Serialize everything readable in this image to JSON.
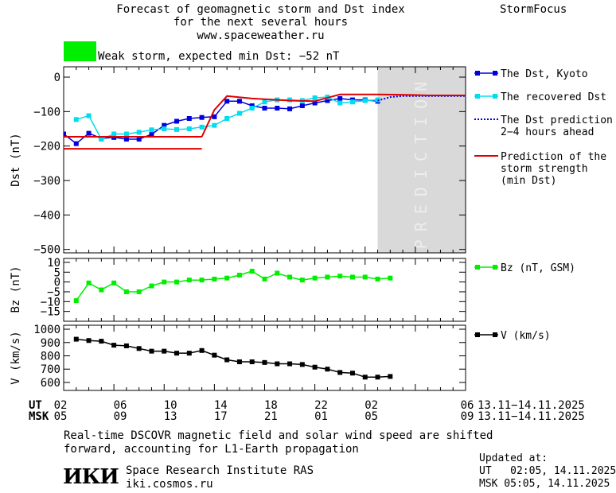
{
  "header": {
    "title_line1": "Forecast of geomagnetic storm and Dst index",
    "title_line2": "for the next several hours",
    "website": "www.spaceweather.ru",
    "brand": "StormFocus",
    "storm_status": "Weak storm, expected min Dst: −52 nT",
    "storm_color": "#00ee00"
  },
  "footer": {
    "note_line1": "Real-time DSCOVR magnetic field and solar wind speed are shifted",
    "note_line2": "forward, accounting for L1-Earth propagation",
    "institute": "Space Research Institute RAS",
    "institute_site": "iki.cosmos.ru",
    "logo_text": "ИКИ",
    "updated_label": "Updated at:",
    "updated_ut": "UT   02:05, 14.11.2025",
    "updated_msk": "MSK 05:05, 14.11.2025"
  },
  "time_axis": {
    "ut_label": "UT",
    "msk_label": "MSK",
    "ut_ticks": [
      "02",
      "06",
      "10",
      "14",
      "18",
      "22",
      "02",
      "06"
    ],
    "msk_ticks": [
      "05",
      "09",
      "13",
      "17",
      "21",
      "01",
      "05",
      "09"
    ],
    "ut_range": "13.11−14.11.2025",
    "msk_range": "13.11−14.11.2025"
  },
  "chart_data": [
    {
      "type": "line",
      "ylabel": "Dst (nT)",
      "ylim": [
        -510,
        30
      ],
      "xlim": [
        0,
        32
      ],
      "yticks": [
        0,
        -100,
        -200,
        -300,
        -400,
        -500
      ],
      "ytick_labels": [
        "0",
        "−100",
        "−200",
        "−300",
        "−400",
        "−500"
      ],
      "prediction_start": 25,
      "prediction_label": "PREDICTION",
      "series": [
        {
          "name": "The Dst, Kyoto",
          "color": "#0000dd",
          "style": "line-square",
          "x": [
            0,
            1,
            2,
            3,
            4,
            5,
            6,
            7,
            8,
            9,
            10,
            11,
            12,
            13,
            14,
            15,
            16,
            17,
            18,
            19,
            20,
            21,
            22,
            23,
            24,
            25
          ],
          "y": [
            -165,
            -193,
            -163,
            -178,
            -175,
            -180,
            -180,
            -166,
            -140,
            -128,
            -120,
            -117,
            -115,
            -70,
            -70,
            -83,
            -90,
            -90,
            -92,
            -83,
            -75,
            -68,
            -62,
            -66,
            -66,
            -70
          ]
        },
        {
          "name": "The recovered Dst",
          "color": "#00ddee",
          "style": "line-square",
          "x": [
            1,
            2,
            3,
            4,
            5,
            6,
            7,
            8,
            9,
            10,
            11,
            12,
            13,
            14,
            15,
            16,
            17,
            18,
            19,
            20,
            21,
            22,
            23,
            24,
            25
          ],
          "y": [
            -123,
            -112,
            -180,
            -165,
            -165,
            -160,
            -153,
            -150,
            -152,
            -150,
            -145,
            -140,
            -120,
            -105,
            -90,
            -72,
            -66,
            -66,
            -68,
            -60,
            -58,
            -75,
            -72,
            -68,
            -66
          ]
        },
        {
          "name": "The Dst prediction\n2−4 hours ahead",
          "color": "#0000dd",
          "style": "dotted",
          "x": [
            25,
            26,
            27,
            28,
            29,
            30,
            31,
            32
          ],
          "y": [
            -68,
            -58,
            -55,
            -55,
            -55,
            -55,
            -55,
            -55
          ]
        },
        {
          "name": "Prediction of the\nstorm strength\n(min Dst)",
          "color": "#dd0000",
          "style": "line",
          "segments": [
            {
              "x": [
                0,
                11
              ],
              "y": [
                -173,
                -173
              ]
            },
            {
              "x": [
                0,
                11
              ],
              "y": [
                -208,
                -208
              ]
            },
            {
              "x": [
                11,
                12,
                13,
                15,
                18,
                20,
                22,
                25,
                28,
                29,
                32
              ],
              "y": [
                -173,
                -95,
                -55,
                -62,
                -68,
                -70,
                -50,
                -50,
                -52,
                -53,
                -53
              ]
            }
          ]
        }
      ]
    },
    {
      "type": "line",
      "ylabel": "Bz (nT)",
      "ylim": [
        -20,
        12
      ],
      "xlim": [
        0,
        32
      ],
      "yticks": [
        10,
        5,
        0,
        -5,
        -10,
        -15
      ],
      "ytick_labels": [
        "10",
        "5",
        "0",
        "−5",
        "−10",
        "−15"
      ],
      "series": [
        {
          "name": "Bz (nT, GSM)",
          "color": "#00ee00",
          "style": "line-square",
          "x": [
            1,
            2,
            3,
            4,
            5,
            6,
            7,
            8,
            9,
            10,
            11,
            12,
            13,
            14,
            15,
            16,
            17,
            18,
            19,
            20,
            21,
            22,
            23,
            24,
            25,
            26
          ],
          "y": [
            -9.5,
            -0.5,
            -4,
            -0.5,
            -5,
            -5,
            -2,
            0,
            0,
            1,
            1,
            1.5,
            2,
            3.5,
            5.5,
            1.5,
            4.5,
            2.5,
            1,
            2,
            2.5,
            3,
            2.5,
            2.5,
            1.5,
            2
          ]
        }
      ]
    },
    {
      "type": "line",
      "ylabel": "V (km/s)",
      "ylim": [
        540,
        1030
      ],
      "xlim": [
        0,
        32
      ],
      "yticks": [
        1000,
        900,
        800,
        700,
        600
      ],
      "ytick_labels": [
        "1000",
        "900",
        "800",
        "700",
        "600"
      ],
      "series": [
        {
          "name": "V (km/s)",
          "color": "#000000",
          "style": "line-square",
          "x": [
            1,
            2,
            3,
            4,
            5,
            6,
            7,
            8,
            9,
            10,
            11,
            12,
            13,
            14,
            15,
            16,
            17,
            18,
            19,
            20,
            21,
            22,
            23,
            24,
            25,
            26
          ],
          "y": [
            925,
            915,
            910,
            880,
            875,
            855,
            835,
            835,
            820,
            820,
            840,
            805,
            770,
            755,
            755,
            750,
            740,
            740,
            735,
            715,
            700,
            675,
            670,
            640,
            640,
            645
          ]
        }
      ]
    }
  ]
}
